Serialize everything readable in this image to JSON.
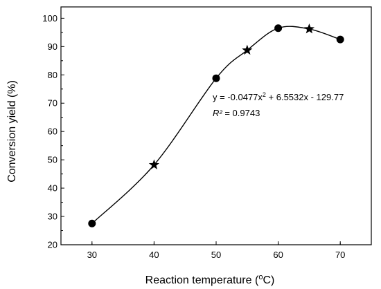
{
  "chart_data": {
    "type": "scatter",
    "xlabel_main": "Reaction temperature (",
    "xlabel_sup": "o",
    "xlabel_unit": "C)",
    "ylabel": "Conversion yield (%)",
    "xlim": [
      25,
      75
    ],
    "ylim": [
      20,
      104
    ],
    "x_ticks": [
      30,
      40,
      50,
      60,
      70
    ],
    "y_ticks": [
      20,
      30,
      40,
      50,
      60,
      70,
      80,
      90,
      100
    ],
    "grid": false,
    "series": [
      {
        "marker": "circle",
        "points": [
          {
            "x": 30,
            "y": 27.5
          },
          {
            "x": 50,
            "y": 78.8
          },
          {
            "x": 60,
            "y": 96.5
          },
          {
            "x": 70,
            "y": 92.5
          }
        ]
      },
      {
        "marker": "star",
        "points": [
          {
            "x": 40,
            "y": 48.2
          },
          {
            "x": 55,
            "y": 88.7
          },
          {
            "x": 65,
            "y": 96.2
          }
        ]
      }
    ],
    "curve": [
      {
        "x": 30,
        "y": 27.5
      },
      {
        "x": 40,
        "y": 48.2
      },
      {
        "x": 50,
        "y": 78.8
      },
      {
        "x": 55,
        "y": 88.7
      },
      {
        "x": 60,
        "y": 96.5
      },
      {
        "x": 65,
        "y": 96.2
      },
      {
        "x": 70,
        "y": 92.5
      }
    ],
    "annotation": {
      "eq_part1": "y = -0.0477x",
      "eq_sup": "2",
      "eq_part2": " + 6.5532x - 129.77",
      "r2_label": "R²",
      "r2_value": " = 0.9743"
    }
  }
}
